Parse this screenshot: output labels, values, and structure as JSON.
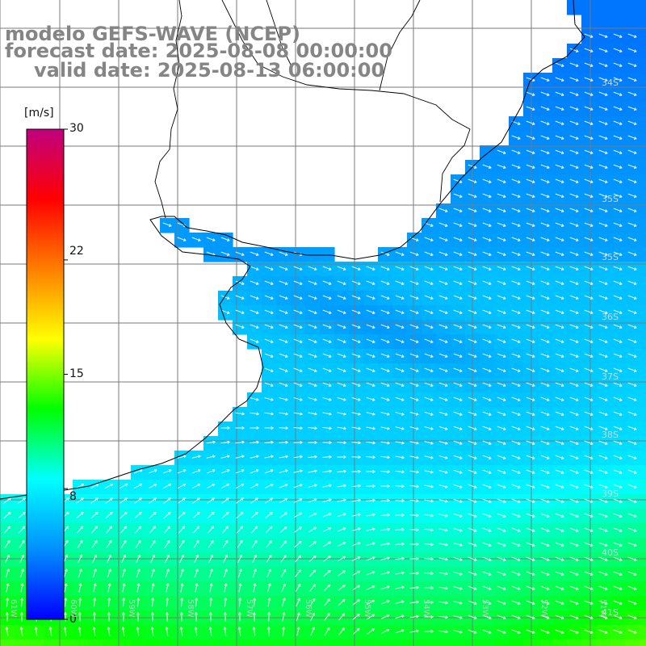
{
  "title": {
    "line1": "modelo GEFS-WAVE (NCEP)",
    "line2": "forecast date: 2025-08-08 00:00:00",
    "line3": "valid date: 2025-08-13 06:00:00"
  },
  "colorbar": {
    "unit": "[m/s]",
    "ticks": [
      "30",
      "22",
      "15",
      "8",
      "0"
    ],
    "range": [
      0,
      30
    ],
    "colors": [
      "#0000ff",
      "#0090ff",
      "#00ffff",
      "#00ff00",
      "#ffff00",
      "#ff7f00",
      "#ff0000",
      "#c00080"
    ]
  },
  "lat_labels": [
    "34S",
    "35S",
    "36S",
    "37S",
    "38S",
    "39S",
    "40S",
    "41S"
  ],
  "lon_labels": [
    "61W",
    "60W",
    "59W",
    "58W",
    "57W",
    "56W",
    "55W",
    "54W",
    "53W",
    "52W",
    "51W"
  ],
  "colors": {
    "land": "#ffffff",
    "grid": "#7a7a7a",
    "coast": "#000000",
    "arrows": "#ffffff",
    "title": "#858585"
  }
}
